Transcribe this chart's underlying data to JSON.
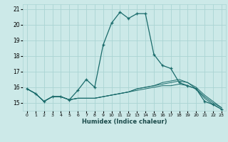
{
  "xlabel": "Humidex (Indice chaleur)",
  "background_color": "#cce9e8",
  "grid_color": "#aad4d3",
  "line_color": "#1a6b6b",
  "x_values": [
    0,
    1,
    2,
    3,
    4,
    5,
    6,
    7,
    8,
    9,
    10,
    11,
    12,
    13,
    14,
    15,
    16,
    17,
    18,
    19,
    20,
    21,
    22,
    23
  ],
  "series": [
    [
      15.9,
      15.6,
      15.1,
      15.4,
      15.4,
      15.2,
      15.8,
      16.5,
      16.0,
      18.7,
      20.1,
      20.8,
      20.4,
      20.7,
      20.7,
      18.1,
      17.4,
      17.2,
      16.3,
      16.1,
      15.9,
      15.1,
      14.9,
      14.6
    ],
    [
      15.9,
      15.6,
      15.1,
      15.4,
      15.4,
      15.2,
      15.3,
      15.3,
      15.3,
      15.4,
      15.5,
      15.6,
      15.7,
      15.8,
      15.9,
      16.0,
      16.1,
      16.1,
      16.2,
      16.1,
      15.9,
      15.3,
      14.9,
      14.6
    ],
    [
      15.9,
      15.6,
      15.1,
      15.4,
      15.4,
      15.2,
      15.3,
      15.3,
      15.3,
      15.4,
      15.5,
      15.6,
      15.7,
      15.9,
      16.0,
      16.1,
      16.2,
      16.3,
      16.4,
      16.3,
      15.9,
      15.4,
      15.0,
      14.7
    ],
    [
      15.9,
      15.6,
      15.1,
      15.4,
      15.4,
      15.2,
      15.3,
      15.3,
      15.3,
      15.4,
      15.5,
      15.6,
      15.7,
      15.9,
      16.0,
      16.1,
      16.3,
      16.4,
      16.5,
      16.3,
      16.0,
      15.5,
      15.1,
      14.7
    ]
  ],
  "ylim": [
    14.5,
    21.3
  ],
  "xlim": [
    -0.5,
    23.5
  ],
  "yticks": [
    15,
    16,
    17,
    18,
    19,
    20,
    21
  ],
  "xticks": [
    0,
    1,
    2,
    3,
    4,
    5,
    6,
    7,
    8,
    9,
    10,
    11,
    12,
    13,
    14,
    15,
    16,
    17,
    18,
    19,
    20,
    21,
    22,
    23
  ],
  "xtick_labels": [
    "0",
    "1",
    "2",
    "3",
    "4",
    "5",
    "6",
    "7",
    "8",
    "9",
    "10",
    "11",
    "12",
    "13",
    "14",
    "15",
    "16",
    "17",
    "18",
    "19",
    "20",
    "21",
    "22",
    "23"
  ]
}
